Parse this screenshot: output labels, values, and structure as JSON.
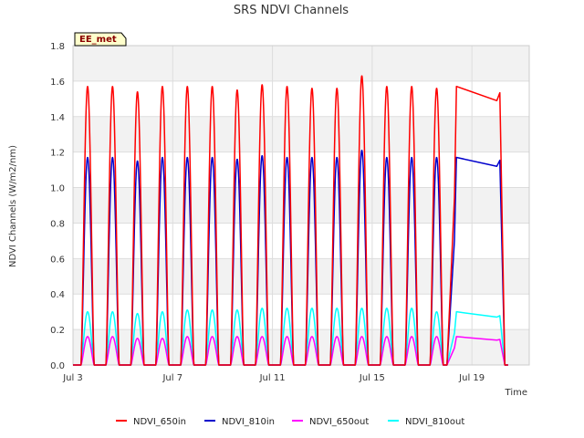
{
  "chart_data": {
    "type": "line",
    "title": "SRS NDVI Channels",
    "xlabel": "Time",
    "ylabel": "NDVI Channels (W/m2/nm)",
    "badge": "EE_met",
    "xlim": [
      3.0,
      21.3
    ],
    "ylim": [
      0.0,
      1.8
    ],
    "yticks": [
      "0.0",
      "0.2",
      "0.4",
      "0.6",
      "0.8",
      "1.0",
      "1.2",
      "1.4",
      "1.6",
      "1.8"
    ],
    "xticks": [
      {
        "value": 3,
        "label": "Jul 3"
      },
      {
        "value": 7,
        "label": "Jul 7"
      },
      {
        "value": 11,
        "label": "Jul 11"
      },
      {
        "value": 15,
        "label": "Jul 15"
      },
      {
        "value": 19,
        "label": "Jul 19"
      }
    ],
    "grid": true,
    "legend_position": "bottom",
    "day_peaks": {
      "days": [
        3,
        4,
        5,
        6,
        7,
        8,
        9,
        10,
        11,
        12,
        13,
        14,
        15,
        16,
        17
      ],
      "NDVI_650in": [
        1.57,
        1.57,
        1.54,
        1.57,
        1.57,
        1.57,
        1.55,
        1.58,
        1.57,
        1.56,
        1.56,
        1.63,
        1.57,
        1.57,
        1.56
      ],
      "NDVI_810in": [
        1.17,
        1.17,
        1.15,
        1.17,
        1.17,
        1.17,
        1.16,
        1.18,
        1.17,
        1.17,
        1.17,
        1.21,
        1.17,
        1.17,
        1.17
      ],
      "NDVI_650out": [
        0.16,
        0.16,
        0.15,
        0.15,
        0.16,
        0.16,
        0.16,
        0.16,
        0.16,
        0.16,
        0.16,
        0.16,
        0.16,
        0.16,
        0.16
      ],
      "NDVI_810out": [
        0.3,
        0.3,
        0.29,
        0.3,
        0.31,
        0.31,
        0.31,
        0.32,
        0.32,
        0.32,
        0.32,
        0.32,
        0.32,
        0.32,
        0.3
      ]
    },
    "gap_segment": {
      "start_day": 18.0,
      "end_day": 20.0,
      "NDVI_650in": [
        1.57,
        1.49
      ],
      "NDVI_810in": [
        1.17,
        1.12
      ],
      "NDVI_650out": [
        0.16,
        0.14
      ],
      "NDVI_810out": [
        0.3,
        0.27
      ]
    },
    "series": [
      {
        "name": "NDVI_650in",
        "color": "#ff0000"
      },
      {
        "name": "NDVI_810in",
        "color": "#0000cc"
      },
      {
        "name": "NDVI_650out",
        "color": "#ff00ff"
      },
      {
        "name": "NDVI_810out",
        "color": "#00ffff"
      }
    ]
  }
}
